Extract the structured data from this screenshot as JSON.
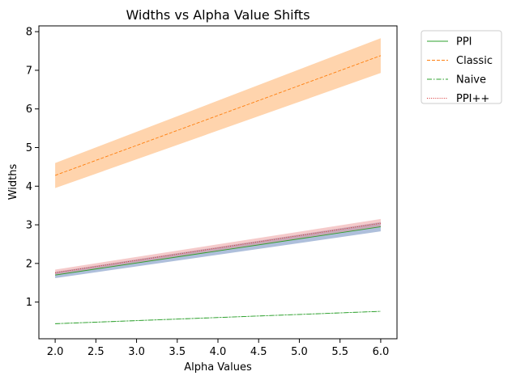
{
  "chart_data": {
    "type": "line",
    "title": "Widths vs Alpha Value Shifts",
    "xlabel": "Alpha Values",
    "ylabel": "Widths",
    "xlim": [
      1.8,
      6.2
    ],
    "ylim": [
      0.05,
      8.15
    ],
    "x_ticks": [
      "2.0",
      "2.5",
      "3.0",
      "3.5",
      "4.0",
      "4.5",
      "5.0",
      "5.5",
      "6.0"
    ],
    "y_ticks": [
      "1",
      "2",
      "3",
      "4",
      "5",
      "6",
      "7",
      "8"
    ],
    "legend_position": "outside-top-right",
    "grid": false,
    "x": [
      2.0,
      6.0
    ],
    "series": [
      {
        "name": "PPI",
        "values": [
          1.7,
          2.95
        ],
        "band_low": [
          1.62,
          2.83
        ],
        "band_high": [
          1.78,
          3.07
        ],
        "color": "#2ca02c",
        "band_color": "#4c72b0",
        "dash": "solid"
      },
      {
        "name": "Classic",
        "values": [
          4.28,
          7.38
        ],
        "band_low": [
          3.95,
          6.93
        ],
        "band_high": [
          4.6,
          7.83
        ],
        "color": "#ff7f0e",
        "band_color": "#ffb97a",
        "dash": "dashed"
      },
      {
        "name": "Naive",
        "values": [
          0.44,
          0.76
        ],
        "band_low": [
          0.43,
          0.75
        ],
        "band_high": [
          0.45,
          0.77
        ],
        "color": "#2ca02c",
        "band_color": "#2ca02c",
        "dash": "dashdot"
      },
      {
        "name": "PPI++",
        "values": [
          1.76,
          3.04
        ],
        "band_low": [
          1.69,
          2.94
        ],
        "band_high": [
          1.84,
          3.15
        ],
        "color": "#d62728",
        "band_color": "#e8898a",
        "dash": "dotted"
      }
    ]
  }
}
